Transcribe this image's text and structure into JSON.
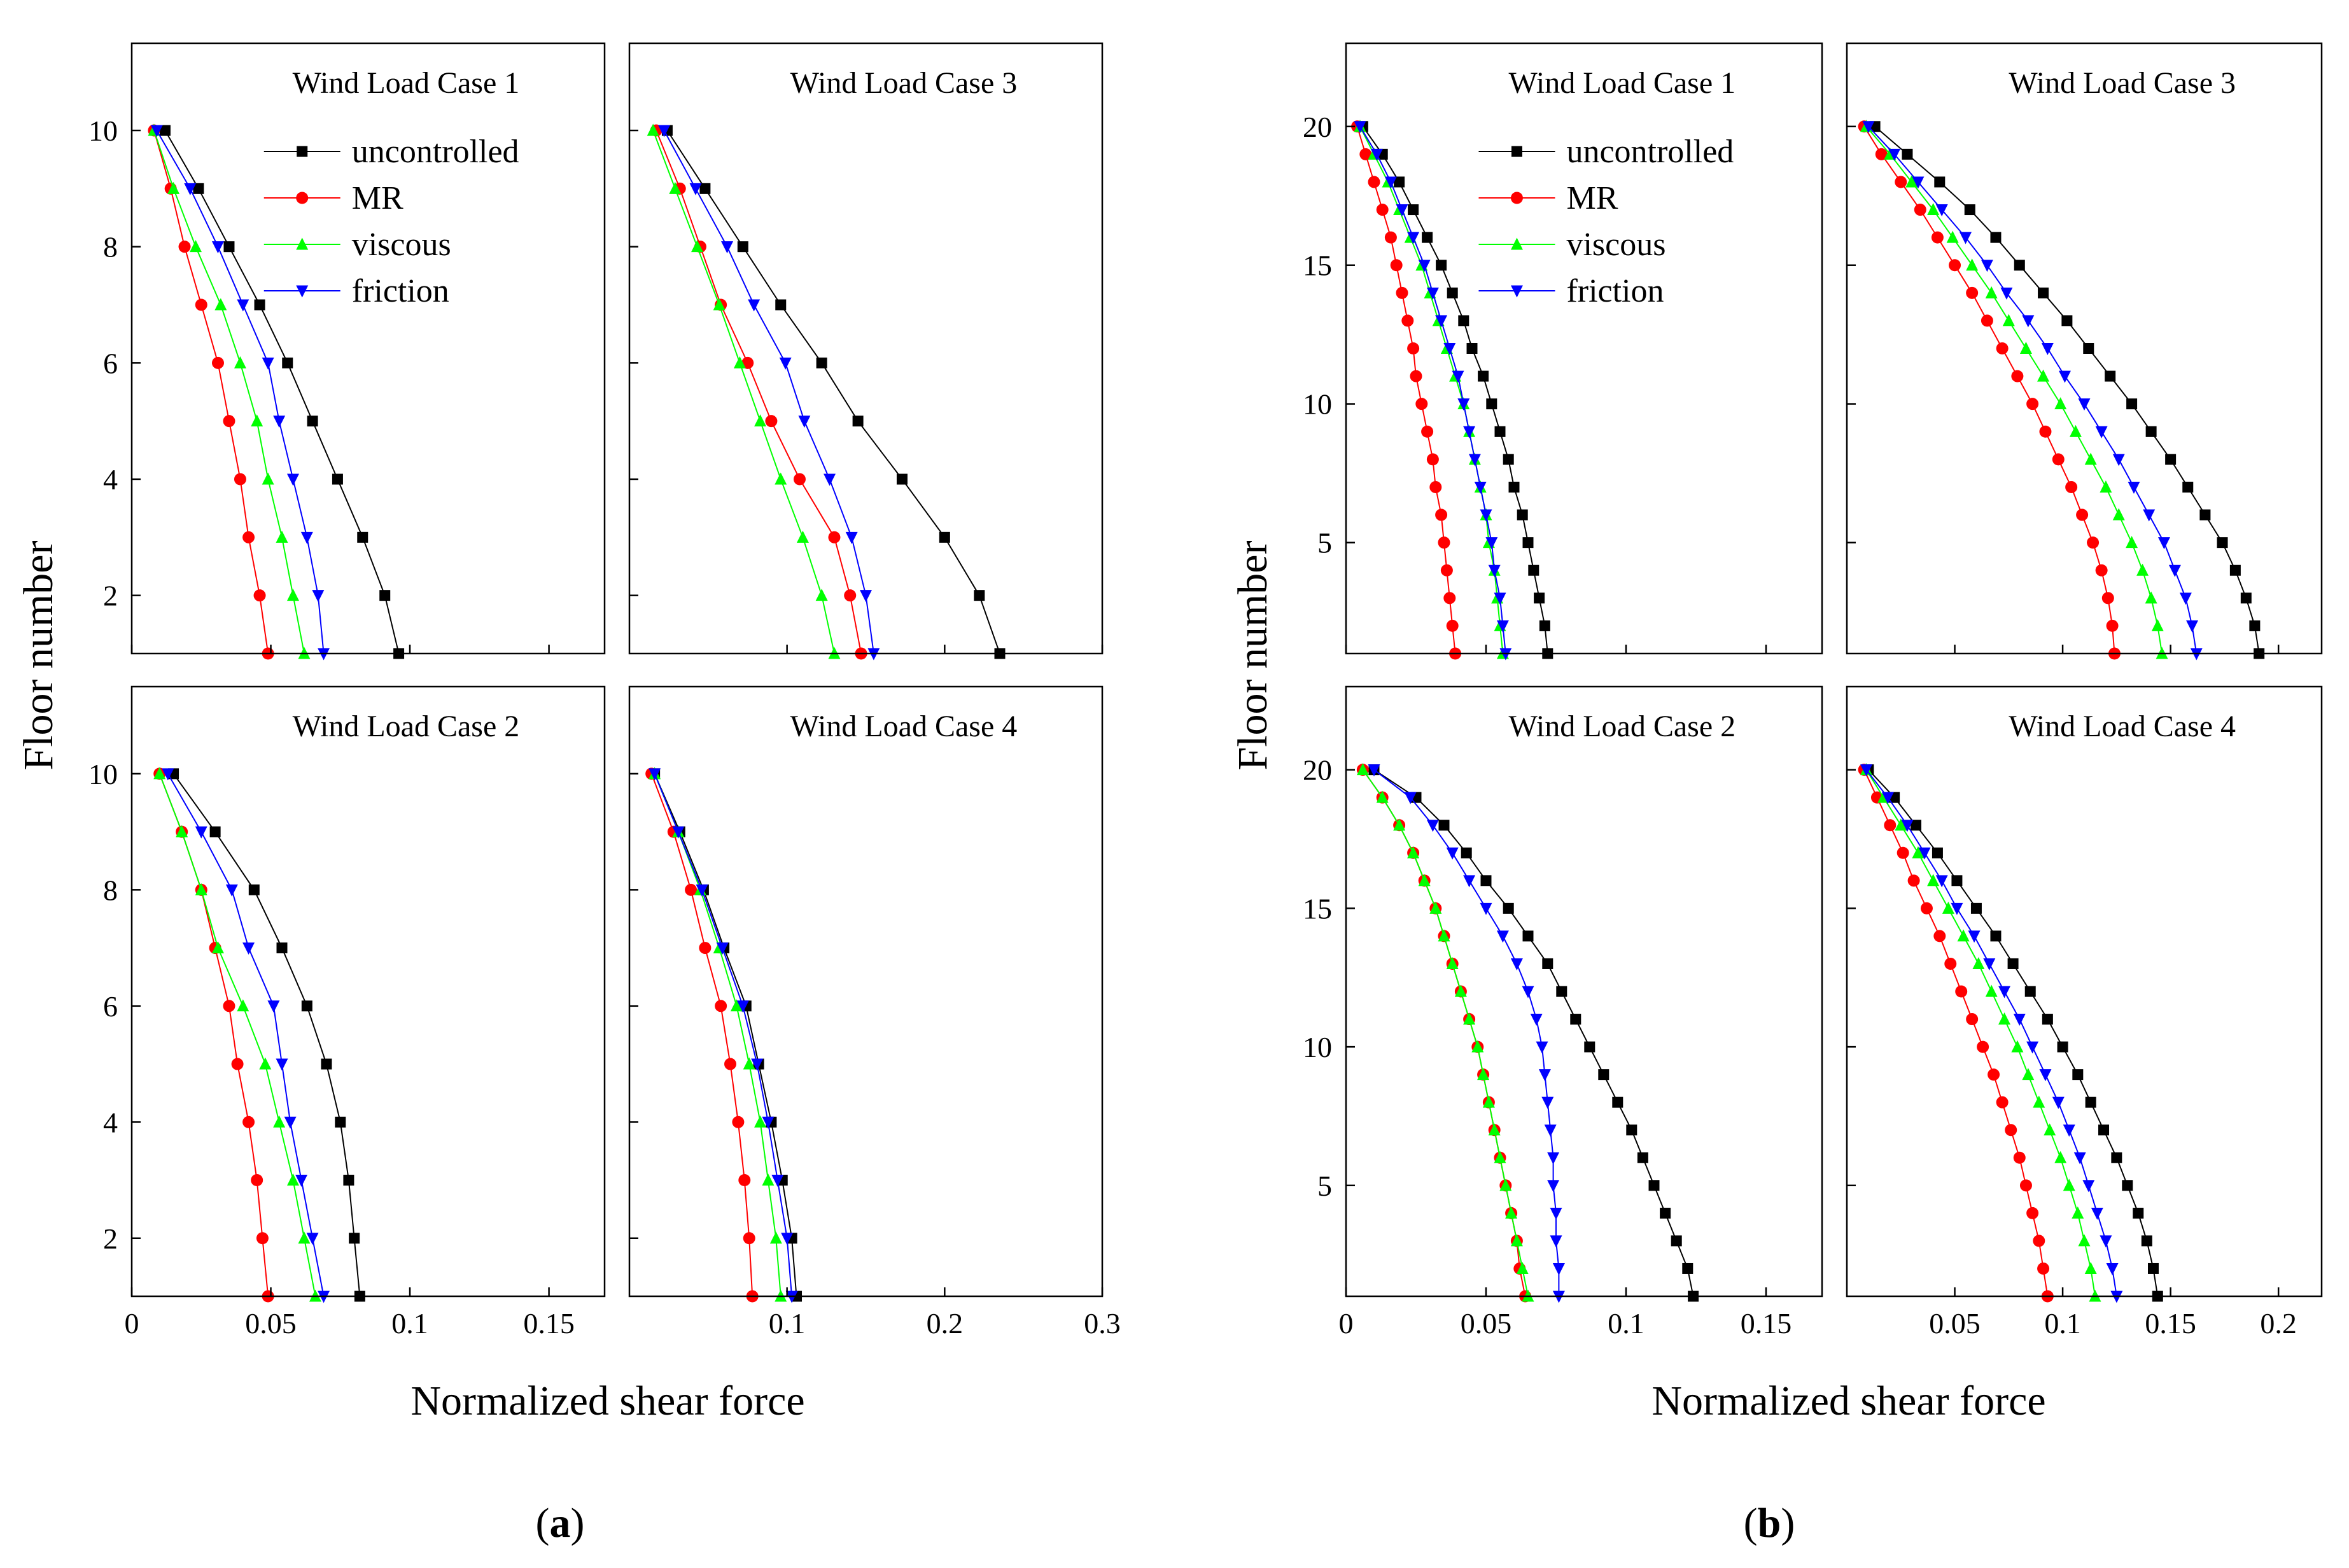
{
  "figure": {
    "subfigures": [
      {
        "label_open": "(",
        "label_letter": "a",
        "label_close": ")"
      },
      {
        "label_open": "(",
        "label_letter": "b",
        "label_close": ")"
      }
    ],
    "ylabel": "Floor number",
    "xlabel": "Normalized shear force"
  },
  "legend": [
    {
      "name": "uncontrolled",
      "color": "#000000",
      "marker": "square"
    },
    {
      "name": "MR",
      "color": "#ff0000",
      "marker": "circle"
    },
    {
      "name": "viscous",
      "color": "#00ff00",
      "marker": "triangle-up"
    },
    {
      "name": "friction",
      "color": "#0000ff",
      "marker": "triangle-down"
    }
  ],
  "chart_data": [
    {
      "type": "line",
      "group": "a",
      "title": "Wind Load Case 1",
      "xlim": [
        0,
        0.17
      ],
      "ylim": [
        1,
        11.5
      ],
      "xticks": [
        0,
        0.05,
        0.1,
        0.15
      ],
      "xticklabels": [
        "0",
        "0.05",
        "0.1",
        "0.15"
      ],
      "yticks": [
        2,
        4,
        6,
        8,
        10
      ],
      "legend": true,
      "y": [
        1,
        2,
        3,
        4,
        5,
        6,
        7,
        8,
        9,
        10
      ],
      "series": [
        {
          "name": "uncontrolled",
          "values": [
            0.096,
            0.091,
            0.083,
            0.074,
            0.065,
            0.056,
            0.046,
            0.035,
            0.024,
            0.012
          ]
        },
        {
          "name": "MR",
          "values": [
            0.049,
            0.046,
            0.042,
            0.039,
            0.035,
            0.031,
            0.025,
            0.019,
            0.014,
            0.008
          ]
        },
        {
          "name": "viscous",
          "values": [
            0.062,
            0.058,
            0.054,
            0.049,
            0.045,
            0.039,
            0.032,
            0.023,
            0.015,
            0.008
          ]
        },
        {
          "name": "friction",
          "values": [
            0.069,
            0.067,
            0.063,
            0.058,
            0.053,
            0.049,
            0.04,
            0.031,
            0.021,
            0.009
          ]
        }
      ]
    },
    {
      "type": "line",
      "group": "a",
      "title": "Wind Load Case 3",
      "xlim": [
        0,
        0.3
      ],
      "ylim": [
        1,
        11.5
      ],
      "xticks": [
        0.1,
        0.2,
        0.3
      ],
      "xticklabels": [
        "0.1",
        "0.2",
        "0.3"
      ],
      "yticks": [
        2,
        4,
        6,
        8,
        10
      ],
      "legend": false,
      "y": [
        1,
        2,
        3,
        4,
        5,
        6,
        7,
        8,
        9,
        10
      ],
      "series": [
        {
          "name": "uncontrolled",
          "values": [
            0.235,
            0.222,
            0.2,
            0.173,
            0.145,
            0.122,
            0.096,
            0.072,
            0.048,
            0.024
          ]
        },
        {
          "name": "MR",
          "values": [
            0.147,
            0.14,
            0.13,
            0.108,
            0.09,
            0.075,
            0.058,
            0.045,
            0.032,
            0.017
          ]
        },
        {
          "name": "viscous",
          "values": [
            0.13,
            0.122,
            0.11,
            0.096,
            0.083,
            0.07,
            0.057,
            0.043,
            0.029,
            0.015
          ]
        },
        {
          "name": "friction",
          "values": [
            0.155,
            0.15,
            0.141,
            0.127,
            0.111,
            0.099,
            0.079,
            0.062,
            0.042,
            0.022
          ]
        }
      ]
    },
    {
      "type": "line",
      "group": "a",
      "title": "Wind Load Case 2",
      "xlim": [
        0,
        0.17
      ],
      "ylim": [
        1,
        11.5
      ],
      "xticks": [
        0,
        0.05,
        0.1,
        0.15
      ],
      "xticklabels": [
        "0",
        "0.05",
        "0.1",
        "0.15"
      ],
      "yticks": [
        2,
        4,
        6,
        8,
        10
      ],
      "legend": false,
      "y": [
        1,
        2,
        3,
        4,
        5,
        6,
        7,
        8,
        9,
        10
      ],
      "series": [
        {
          "name": "uncontrolled",
          "values": [
            0.082,
            0.08,
            0.078,
            0.075,
            0.07,
            0.063,
            0.054,
            0.044,
            0.03,
            0.015
          ]
        },
        {
          "name": "MR",
          "values": [
            0.049,
            0.047,
            0.045,
            0.042,
            0.038,
            0.035,
            0.03,
            0.025,
            0.018,
            0.01
          ]
        },
        {
          "name": "viscous",
          "values": [
            0.066,
            0.062,
            0.058,
            0.053,
            0.048,
            0.04,
            0.031,
            0.025,
            0.018,
            0.01
          ]
        },
        {
          "name": "friction",
          "values": [
            0.069,
            0.065,
            0.061,
            0.057,
            0.054,
            0.051,
            0.042,
            0.036,
            0.025,
            0.013
          ]
        }
      ]
    },
    {
      "type": "line",
      "group": "a",
      "title": "Wind Load Case 4",
      "xlim": [
        0,
        0.3
      ],
      "ylim": [
        1,
        11.5
      ],
      "xticks": [
        0.1,
        0.2,
        0.3
      ],
      "xticklabels": [
        "0.1",
        "0.2",
        "0.3"
      ],
      "yticks": [
        2,
        4,
        6,
        8,
        10
      ],
      "legend": false,
      "y": [
        1,
        2,
        3,
        4,
        5,
        6,
        7,
        8,
        9,
        10
      ],
      "series": [
        {
          "name": "uncontrolled",
          "values": [
            0.106,
            0.103,
            0.097,
            0.09,
            0.082,
            0.074,
            0.06,
            0.047,
            0.032,
            0.016
          ]
        },
        {
          "name": "MR",
          "values": [
            0.078,
            0.076,
            0.073,
            0.069,
            0.064,
            0.058,
            0.048,
            0.039,
            0.028,
            0.014
          ]
        },
        {
          "name": "viscous",
          "values": [
            0.096,
            0.093,
            0.088,
            0.083,
            0.076,
            0.068,
            0.057,
            0.045,
            0.031,
            0.016
          ]
        },
        {
          "name": "friction",
          "values": [
            0.103,
            0.1,
            0.094,
            0.088,
            0.081,
            0.072,
            0.059,
            0.046,
            0.031,
            0.016
          ]
        }
      ]
    },
    {
      "type": "line",
      "group": "b",
      "title": "Wind Load Case 1",
      "xlim": [
        0,
        0.17
      ],
      "ylim": [
        1,
        23
      ],
      "xticks": [
        0,
        0.05,
        0.1,
        0.15
      ],
      "xticklabels": [
        "0",
        "0.05",
        "0.1",
        "0.15"
      ],
      "yticks": [
        5,
        10,
        15,
        20
      ],
      "legend": true,
      "y": [
        1,
        2,
        3,
        4,
        5,
        6,
        7,
        8,
        9,
        10,
        11,
        12,
        13,
        14,
        15,
        16,
        17,
        18,
        19,
        20
      ],
      "series": [
        {
          "name": "uncontrolled",
          "values": [
            0.072,
            0.071,
            0.069,
            0.067,
            0.065,
            0.063,
            0.06,
            0.058,
            0.055,
            0.052,
            0.049,
            0.045,
            0.042,
            0.038,
            0.034,
            0.029,
            0.024,
            0.019,
            0.013,
            0.006
          ]
        },
        {
          "name": "MR",
          "values": [
            0.039,
            0.038,
            0.037,
            0.036,
            0.035,
            0.034,
            0.032,
            0.031,
            0.029,
            0.027,
            0.025,
            0.024,
            0.022,
            0.02,
            0.018,
            0.016,
            0.013,
            0.01,
            0.007,
            0.004
          ]
        },
        {
          "name": "viscous",
          "values": [
            0.056,
            0.055,
            0.054,
            0.053,
            0.051,
            0.05,
            0.048,
            0.046,
            0.044,
            0.042,
            0.039,
            0.036,
            0.033,
            0.03,
            0.027,
            0.023,
            0.019,
            0.015,
            0.01,
            0.005
          ]
        },
        {
          "name": "friction",
          "values": [
            0.057,
            0.056,
            0.055,
            0.053,
            0.052,
            0.05,
            0.048,
            0.046,
            0.044,
            0.042,
            0.04,
            0.037,
            0.034,
            0.031,
            0.028,
            0.024,
            0.02,
            0.016,
            0.011,
            0.005
          ]
        }
      ]
    },
    {
      "type": "line",
      "group": "b",
      "title": "Wind Load Case 3",
      "xlim": [
        0,
        0.22
      ],
      "ylim": [
        1,
        23
      ],
      "xticks": [
        0.05,
        0.1,
        0.15,
        0.2
      ],
      "xticklabels": [
        "0.05",
        "0.1",
        "0.15",
        "0.2"
      ],
      "yticks": [
        5,
        10,
        15,
        20
      ],
      "legend": false,
      "y": [
        1,
        2,
        3,
        4,
        5,
        6,
        7,
        8,
        9,
        10,
        11,
        12,
        13,
        14,
        15,
        16,
        17,
        18,
        19,
        20
      ],
      "series": [
        {
          "name": "uncontrolled",
          "values": [
            0.191,
            0.189,
            0.185,
            0.18,
            0.174,
            0.166,
            0.158,
            0.15,
            0.141,
            0.132,
            0.122,
            0.112,
            0.102,
            0.091,
            0.08,
            0.069,
            0.057,
            0.043,
            0.028,
            0.013
          ]
        },
        {
          "name": "MR",
          "values": [
            0.124,
            0.123,
            0.121,
            0.118,
            0.114,
            0.109,
            0.104,
            0.098,
            0.092,
            0.086,
            0.079,
            0.072,
            0.065,
            0.058,
            0.05,
            0.042,
            0.034,
            0.025,
            0.016,
            0.008
          ]
        },
        {
          "name": "viscous",
          "values": [
            0.146,
            0.144,
            0.141,
            0.137,
            0.132,
            0.126,
            0.12,
            0.113,
            0.106,
            0.099,
            0.091,
            0.083,
            0.075,
            0.067,
            0.058,
            0.049,
            0.04,
            0.03,
            0.02,
            0.009
          ]
        },
        {
          "name": "friction",
          "values": [
            0.162,
            0.16,
            0.157,
            0.152,
            0.147,
            0.14,
            0.133,
            0.126,
            0.118,
            0.11,
            0.101,
            0.093,
            0.084,
            0.074,
            0.065,
            0.055,
            0.044,
            0.033,
            0.022,
            0.01
          ]
        }
      ]
    },
    {
      "type": "line",
      "group": "b",
      "title": "Wind Load Case 2",
      "xlim": [
        0,
        0.17
      ],
      "ylim": [
        1,
        23
      ],
      "xticks": [
        0,
        0.05,
        0.1,
        0.15
      ],
      "xticklabels": [
        "0",
        "0.05",
        "0.1",
        "0.15"
      ],
      "yticks": [
        5,
        10,
        15,
        20
      ],
      "legend": false,
      "y": [
        1,
        2,
        3,
        4,
        5,
        6,
        7,
        8,
        9,
        10,
        11,
        12,
        13,
        14,
        15,
        16,
        17,
        18,
        19,
        20
      ],
      "series": [
        {
          "name": "uncontrolled",
          "values": [
            0.124,
            0.122,
            0.118,
            0.114,
            0.11,
            0.106,
            0.102,
            0.097,
            0.092,
            0.087,
            0.082,
            0.077,
            0.072,
            0.065,
            0.058,
            0.05,
            0.043,
            0.035,
            0.025,
            0.01
          ]
        },
        {
          "name": "MR",
          "values": [
            0.064,
            0.062,
            0.061,
            0.059,
            0.057,
            0.055,
            0.053,
            0.051,
            0.049,
            0.047,
            0.044,
            0.041,
            0.038,
            0.035,
            0.032,
            0.028,
            0.024,
            0.019,
            0.013,
            0.006
          ]
        },
        {
          "name": "viscous",
          "values": [
            0.065,
            0.063,
            0.061,
            0.059,
            0.057,
            0.055,
            0.053,
            0.051,
            0.049,
            0.047,
            0.044,
            0.041,
            0.038,
            0.035,
            0.032,
            0.028,
            0.024,
            0.019,
            0.013,
            0.006
          ]
        },
        {
          "name": "friction",
          "values": [
            0.076,
            0.076,
            0.075,
            0.075,
            0.074,
            0.074,
            0.073,
            0.072,
            0.071,
            0.07,
            0.068,
            0.065,
            0.061,
            0.056,
            0.05,
            0.044,
            0.038,
            0.031,
            0.023,
            0.01
          ]
        }
      ]
    },
    {
      "type": "line",
      "group": "b",
      "title": "Wind Load Case 4",
      "xlim": [
        0,
        0.22
      ],
      "ylim": [
        1,
        23
      ],
      "xticks": [
        0.05,
        0.1,
        0.15,
        0.2
      ],
      "xticklabels": [
        "0.05",
        "0.1",
        "0.15",
        "0.2"
      ],
      "yticks": [
        5,
        10,
        15,
        20
      ],
      "legend": false,
      "y": [
        1,
        2,
        3,
        4,
        5,
        6,
        7,
        8,
        9,
        10,
        11,
        12,
        13,
        14,
        15,
        16,
        17,
        18,
        19,
        20
      ],
      "series": [
        {
          "name": "uncontrolled",
          "values": [
            0.144,
            0.142,
            0.139,
            0.135,
            0.13,
            0.125,
            0.119,
            0.113,
            0.107,
            0.1,
            0.093,
            0.085,
            0.077,
            0.069,
            0.06,
            0.051,
            0.042,
            0.032,
            0.022,
            0.01
          ]
        },
        {
          "name": "MR",
          "values": [
            0.093,
            0.091,
            0.089,
            0.086,
            0.083,
            0.08,
            0.076,
            0.072,
            0.068,
            0.063,
            0.058,
            0.053,
            0.048,
            0.043,
            0.037,
            0.031,
            0.026,
            0.02,
            0.014,
            0.008
          ]
        },
        {
          "name": "viscous",
          "values": [
            0.115,
            0.113,
            0.11,
            0.107,
            0.103,
            0.099,
            0.094,
            0.089,
            0.084,
            0.079,
            0.073,
            0.067,
            0.061,
            0.054,
            0.047,
            0.04,
            0.033,
            0.025,
            0.017,
            0.009
          ]
        },
        {
          "name": "friction",
          "values": [
            0.125,
            0.123,
            0.12,
            0.116,
            0.112,
            0.108,
            0.103,
            0.098,
            0.092,
            0.086,
            0.08,
            0.073,
            0.066,
            0.059,
            0.051,
            0.044,
            0.036,
            0.028,
            0.019,
            0.009
          ]
        }
      ]
    }
  ]
}
